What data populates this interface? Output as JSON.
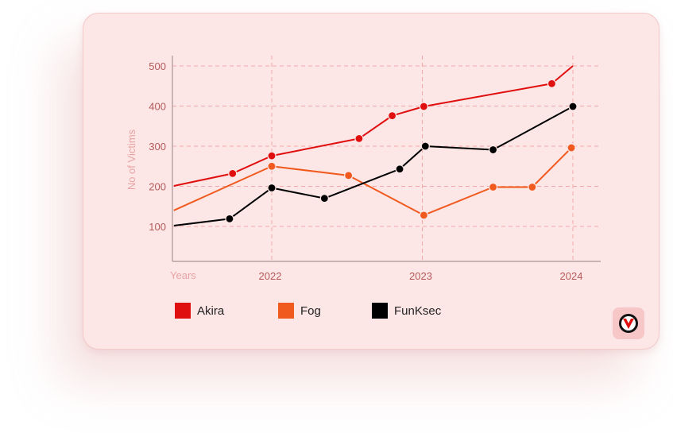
{
  "chart_data": {
    "type": "line",
    "xlabel": "Years",
    "ylabel": "No of Victims",
    "x_ticks": [
      "2022",
      "2023",
      "2024"
    ],
    "y_ticks": [
      100,
      200,
      300,
      400,
      500
    ],
    "xlim": [
      2021.35,
      2024.18
    ],
    "ylim": [
      15,
      530
    ],
    "grid": true,
    "legend_position": "bottom-left",
    "series": [
      {
        "name": "Akira",
        "color": "#e00f0f",
        "points": [
          [
            2021.35,
            201
          ],
          [
            2021.74,
            232
          ],
          [
            2022.0,
            276
          ],
          [
            2022.58,
            319
          ],
          [
            2022.8,
            376
          ],
          [
            2023.01,
            399
          ],
          [
            2023.86,
            456
          ],
          [
            2024.0,
            500
          ]
        ],
        "markers": [
          false,
          true,
          true,
          true,
          true,
          true,
          true,
          false
        ]
      },
      {
        "name": "Fog",
        "color": "#f05a1e",
        "points": [
          [
            2021.35,
            140
          ],
          [
            2022.0,
            250
          ],
          [
            2022.51,
            227
          ],
          [
            2023.01,
            128
          ],
          [
            2023.47,
            198
          ],
          [
            2023.73,
            198
          ],
          [
            2023.99,
            296
          ]
        ],
        "markers": [
          false,
          true,
          true,
          true,
          true,
          true,
          true
        ]
      },
      {
        "name": "FunKsec",
        "color": "#000000",
        "points": [
          [
            2021.35,
            102
          ],
          [
            2021.72,
            119
          ],
          [
            2022.0,
            196
          ],
          [
            2022.35,
            170
          ],
          [
            2022.85,
            243
          ],
          [
            2023.02,
            300
          ],
          [
            2023.47,
            291
          ],
          [
            2024.0,
            399
          ]
        ],
        "markers": [
          false,
          true,
          true,
          true,
          true,
          true,
          true,
          true
        ]
      }
    ]
  },
  "legend": [
    {
      "label": "Akira",
      "color": "#e00f0f"
    },
    {
      "label": "Fog",
      "color": "#f05a1e"
    },
    {
      "label": "FunKsec",
      "color": "#000000"
    }
  ],
  "logo": {
    "icon": "v-shield-logo-icon"
  }
}
